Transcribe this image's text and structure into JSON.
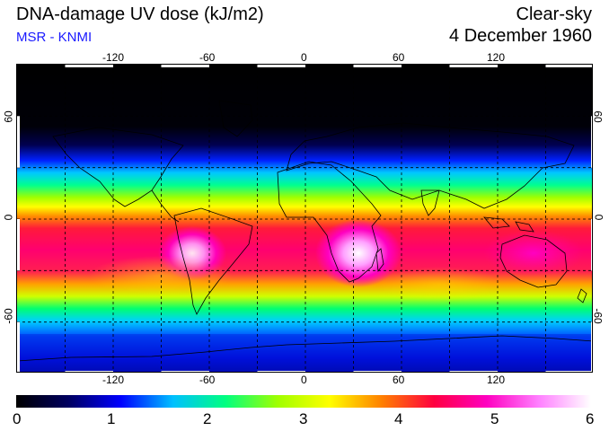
{
  "header": {
    "title": "DNA-damage UV dose (kJ/m2)",
    "subtitle": "MSR - KNMI",
    "mode": "Clear-sky",
    "date": "4 December 1960"
  },
  "map": {
    "projection": "equirectangular",
    "lon_range": [
      -180,
      180
    ],
    "lat_range": [
      -90,
      90
    ],
    "lon_ticks": [
      "-120",
      "-60",
      "0",
      "60",
      "120"
    ],
    "lat_ticks": [
      "60",
      "0",
      "-60"
    ],
    "gridlines": "dashed every 30 degrees",
    "quantity": "DNA-damage UV dose",
    "units": "kJ/m2",
    "max_region": "southern hemisphere tropics and subtropics (southern Africa, South America, Australia)"
  },
  "colorbar": {
    "labels": [
      "0",
      "1",
      "2",
      "3",
      "4",
      "5",
      "6"
    ],
    "min": 0,
    "max": 6,
    "colors": [
      "#000000",
      "#000060",
      "#0000ff",
      "#00c0ff",
      "#00ff80",
      "#a0ff00",
      "#ffff00",
      "#ff8000",
      "#ff0040",
      "#ff00c0",
      "#ff80ff",
      "#ffffff"
    ]
  }
}
